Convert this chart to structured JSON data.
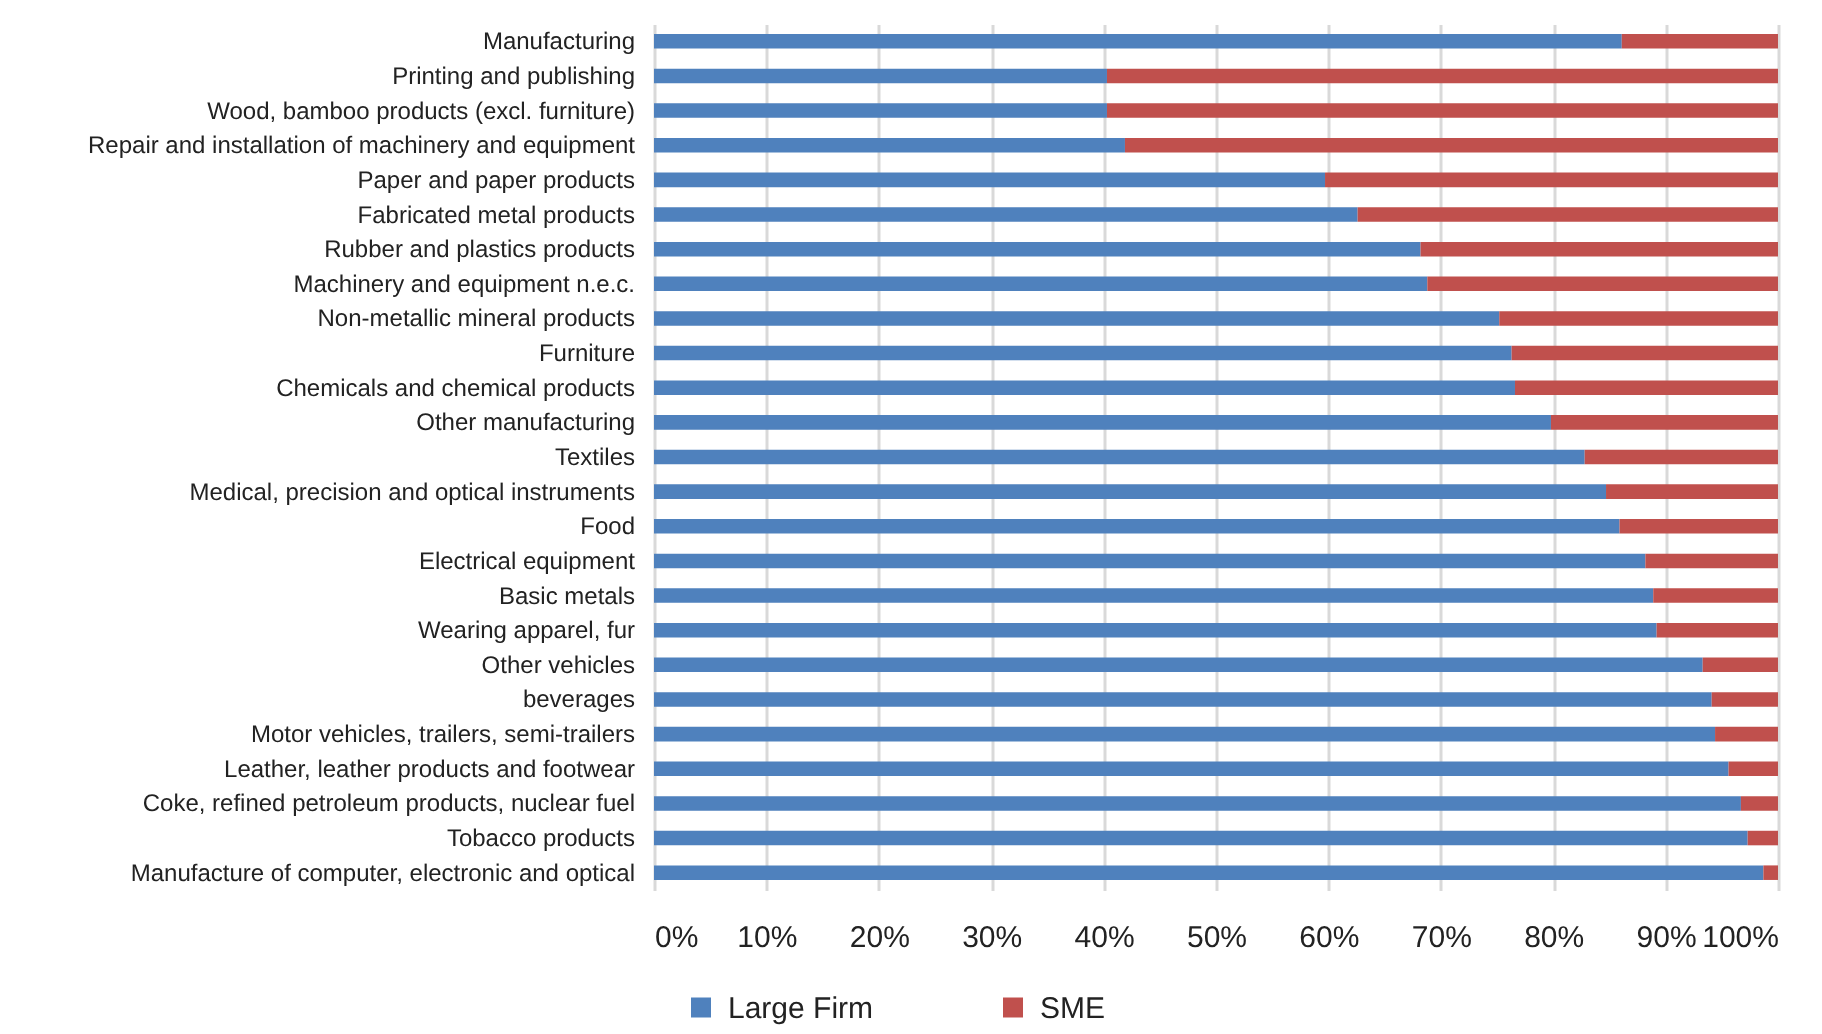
{
  "chart_data": {
    "type": "bar",
    "orientation": "horizontal",
    "stacked": true,
    "categories": [
      "Manufacturing",
      "Printing and publishing",
      "Wood, bamboo products (excl. furniture)",
      "Repair and installation of machinery and equipment",
      "Paper and paper products",
      "Fabricated metal products",
      "Rubber and plastics products",
      "Machinery and equipment n.e.c.",
      "Non-metallic mineral products",
      "Furniture",
      "Chemicals and chemical products",
      "Other manufacturing",
      "Textiles",
      "Medical, precision and optical instruments",
      "Food",
      "Electrical equipment",
      "Basic metals",
      "Wearing apparel, fur",
      "Other vehicles",
      "beverages",
      "Motor vehicles, trailers, semi-trailers",
      "Leather, leather products and footwear",
      "Coke, refined petroleum products, nuclear fuel",
      "Tobacco products",
      "Manufacture of computer, electronic and optical"
    ],
    "series": [
      {
        "name": "Large Firm",
        "color": "#4f81bd",
        "values": [
          86.1,
          40.3,
          40.3,
          41.9,
          59.7,
          62.6,
          68.2,
          68.8,
          75.2,
          76.3,
          76.6,
          79.8,
          82.8,
          84.7,
          85.9,
          88.2,
          88.9,
          89.2,
          93.3,
          94.1,
          94.4,
          95.6,
          96.7,
          97.3,
          98.7
        ]
      },
      {
        "name": "SME",
        "color": "#c0504d",
        "values": [
          13.9,
          59.7,
          59.7,
          58.1,
          40.3,
          37.4,
          31.8,
          31.2,
          24.8,
          23.7,
          23.4,
          20.2,
          17.2,
          15.3,
          14.1,
          11.8,
          11.1,
          10.8,
          6.7,
          5.9,
          5.6,
          4.4,
          3.3,
          2.7,
          1.3
        ]
      }
    ],
    "xlim": [
      0,
      100
    ],
    "xticks": [
      {
        "value": 0,
        "label": "0%"
      },
      {
        "value": 10,
        "label": "10%"
      },
      {
        "value": 20,
        "label": "20%"
      },
      {
        "value": 30,
        "label": "30%"
      },
      {
        "value": 40,
        "label": "40%"
      },
      {
        "value": 50,
        "label": "50%"
      },
      {
        "value": 60,
        "label": "60%"
      },
      {
        "value": 70,
        "label": "70%"
      },
      {
        "value": 80,
        "label": "80%"
      },
      {
        "value": 90,
        "label": "90%"
      },
      {
        "value": 100,
        "label": "100%"
      }
    ],
    "grid": "x",
    "legend": "bottom"
  }
}
